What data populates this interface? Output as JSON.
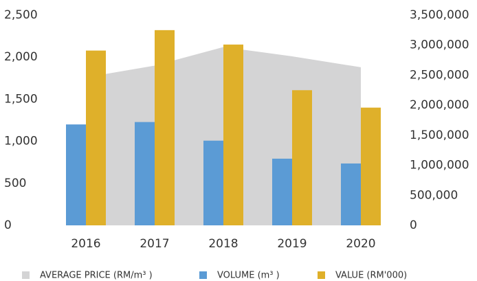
{
  "chart_data": {
    "type": "bar-area",
    "categories": [
      "2016",
      "2017",
      "2018",
      "2019",
      "2020"
    ],
    "series": [
      {
        "name": "AVERAGE PRICE (RM/m³ )",
        "color": "#d4d4d5",
        "kind": "area",
        "axis": "y",
        "values": [
          1760,
          1900,
          2120,
          2010,
          1880
        ]
      },
      {
        "name": "VOLUME (m³ )",
        "color": "#5b9bd5",
        "kind": "bar",
        "axis": "y2",
        "values": [
          1680000,
          1720000,
          1410000,
          1110000,
          1030000
        ]
      },
      {
        "name": "VALUE  (RM'000)",
        "color": "#dfb02a",
        "kind": "bar",
        "axis": "y2",
        "values": [
          2910000,
          3250000,
          3010000,
          2250000,
          1960000
        ]
      }
    ],
    "ylim": [
      0,
      2500
    ],
    "yticks": [
      0,
      500,
      {
        "value": 1000,
        "label": "1,000"
      },
      {
        "value": 1500,
        "label": "1,500"
      },
      {
        "value": 2000,
        "label": "2,000"
      },
      {
        "value": 2500,
        "label": "2,500"
      }
    ],
    "y2lim": [
      0,
      3500000
    ],
    "y2ticks": [
      0,
      {
        "value": 500000,
        "label": "500,000"
      },
      {
        "value": 1000000,
        "label": "1,000,000"
      },
      {
        "value": 1500000,
        "label": "1,500,000"
      },
      {
        "value": 2000000,
        "label": "2,000,000"
      },
      {
        "value": 2500000,
        "label": "2,500,000"
      },
      {
        "value": 3000000,
        "label": "3,000,000"
      },
      {
        "value": 3500000,
        "label": "3,500,000"
      }
    ],
    "legend": "bottom"
  }
}
